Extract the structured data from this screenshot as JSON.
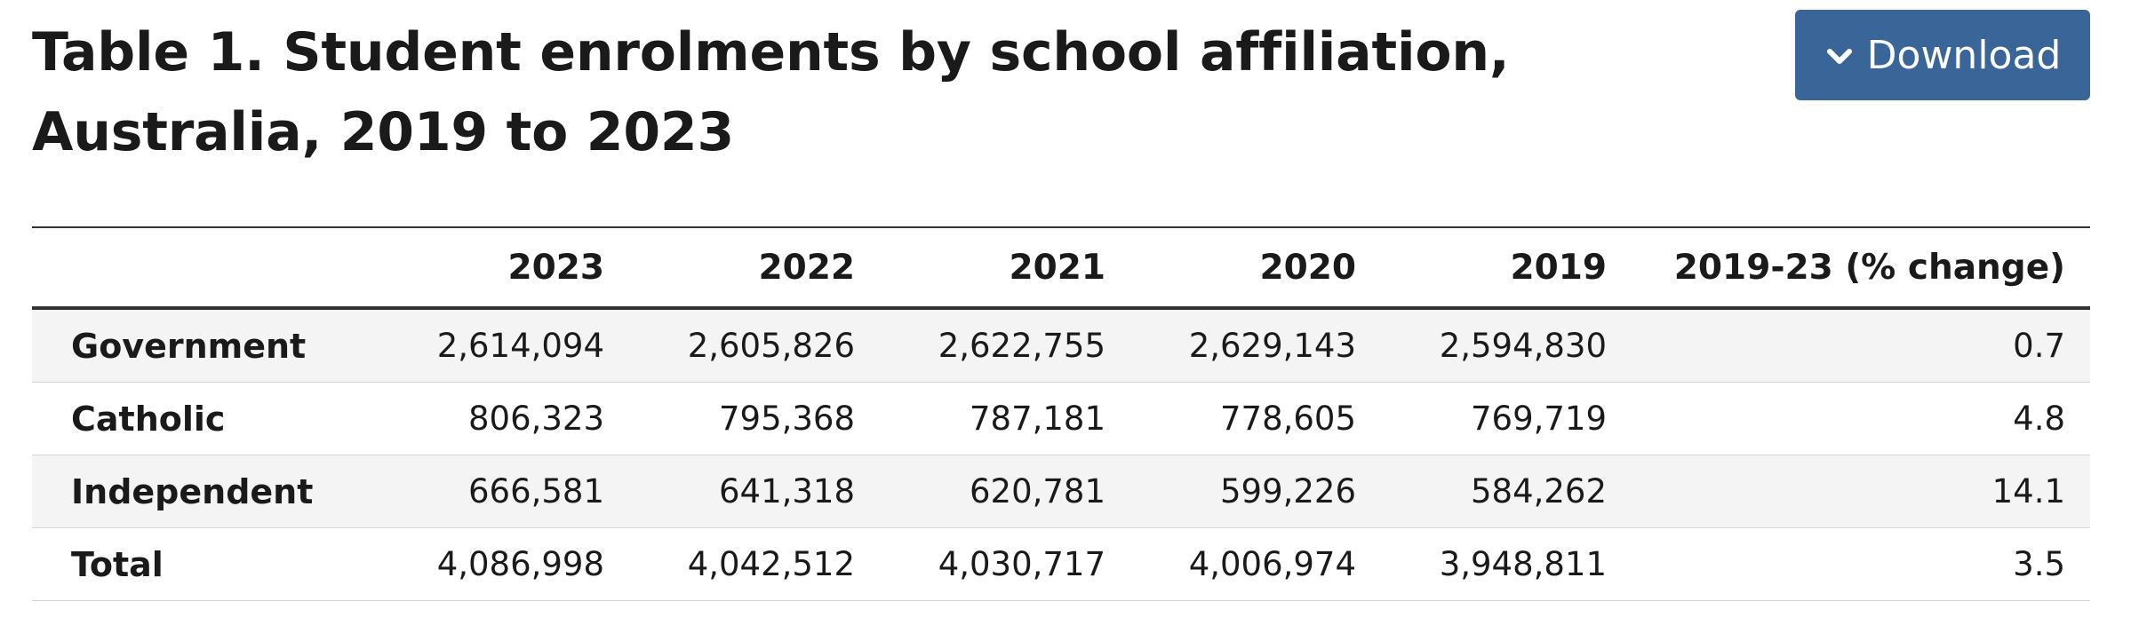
{
  "title": "Table 1. Student enrolments by school affiliation, Australia, 2019 to 2023",
  "download": {
    "label": "Download",
    "icon": "chevron-down-icon"
  },
  "colors": {
    "button_background": "#3a6598",
    "row_shading": "#f4f4f4",
    "rule": "#333333"
  },
  "table": {
    "columns": [
      "",
      "2023",
      "2022",
      "2021",
      "2020",
      "2019",
      "2019-23 (% change)"
    ],
    "rows": [
      {
        "label": "Government",
        "values": [
          "2,614,094",
          "2,605,826",
          "2,622,755",
          "2,629,143",
          "2,594,830",
          "0.7"
        ]
      },
      {
        "label": "Catholic",
        "values": [
          "806,323",
          "795,368",
          "787,181",
          "778,605",
          "769,719",
          "4.8"
        ]
      },
      {
        "label": "Independent",
        "values": [
          "666,581",
          "641,318",
          "620,781",
          "599,226",
          "584,262",
          "14.1"
        ]
      },
      {
        "label": "Total",
        "values": [
          "4,086,998",
          "4,042,512",
          "4,030,717",
          "4,006,974",
          "3,948,811",
          "3.5"
        ]
      }
    ]
  }
}
